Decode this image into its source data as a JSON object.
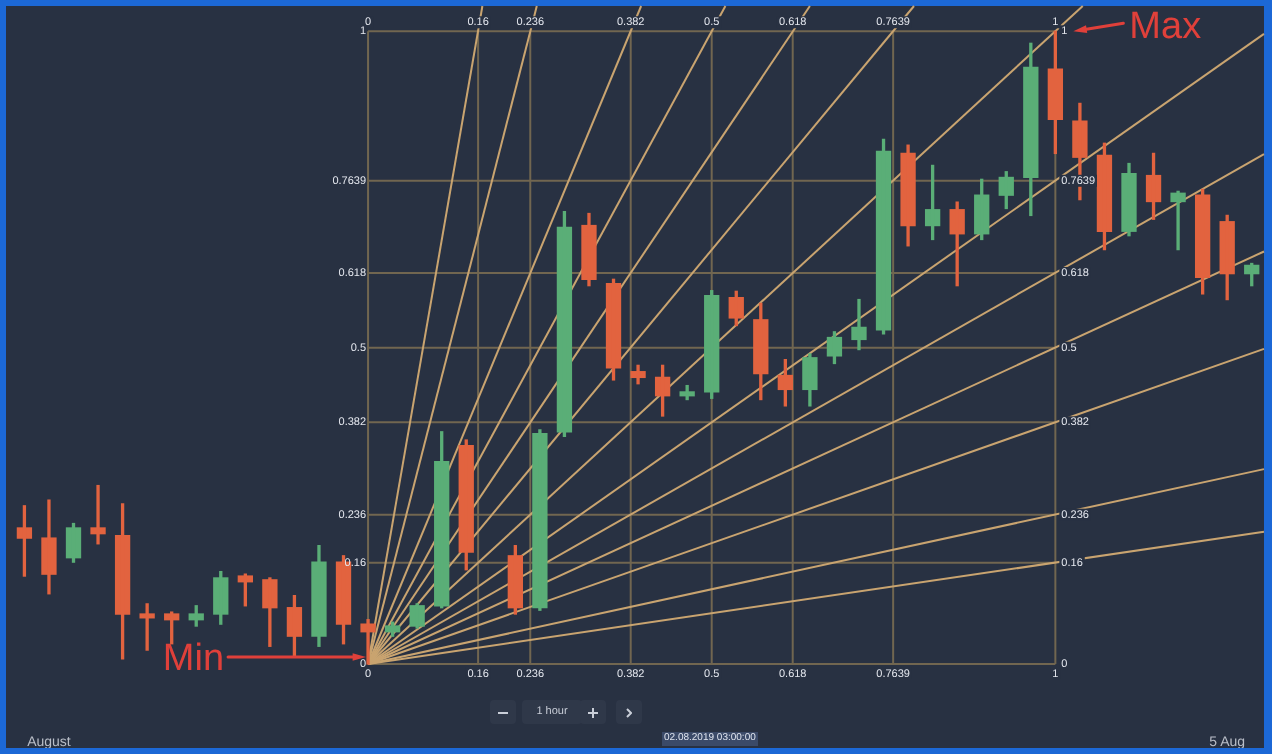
{
  "chart_data": {
    "type": "candlestick",
    "xlim": [
      "2019-07-31T20:30",
      "2019-08-05T03:00"
    ],
    "xticks": [
      {
        "value": "2019-08-01",
        "label": "August"
      },
      {
        "value": "2019-08-05",
        "label": "5 Aug"
      }
    ],
    "ylim": [
      0,
      1.04
    ],
    "yticks": [
      0,
      0.16,
      0.236,
      0.382,
      0.5,
      0.618,
      0.7639,
      1
    ],
    "annotations": [
      {
        "text": "Min",
        "x": "2019-08-02T02:00",
        "y": 0
      },
      {
        "text": "Max",
        "x": "2019-08-04T10:00",
        "y": 1
      },
      "1 hour",
      "02.08.2019 03:00:00"
    ],
    "series": [
      {
        "x": [
          "2019-07-31T22:00",
          "2019-08-01T00:00",
          "2019-08-01T02:00",
          "2019-08-01T04:00",
          "2019-08-01T06:00",
          "2019-08-01T08:00",
          "2019-08-01T10:00",
          "2019-08-01T12:00",
          "2019-08-01T14:00",
          "2019-08-01T16:00",
          "2019-08-01T18:00",
          "2019-08-01T20:00",
          "2019-08-01T22:00",
          "2019-08-02T00:00",
          "2019-08-02T02:00",
          "2019-08-02T04:00",
          "2019-08-02T06:00",
          "2019-08-02T08:00",
          "2019-08-02T10:00",
          "2019-08-02T14:00",
          "2019-08-02T16:00",
          "2019-08-02T18:00",
          "2019-08-02T20:00",
          "2019-08-02T22:00",
          "2019-08-03T00:00",
          "2019-08-03T02:00",
          "2019-08-03T04:00",
          "2019-08-03T06:00",
          "2019-08-03T08:00",
          "2019-08-03T10:00",
          "2019-08-03T12:00",
          "2019-08-03T14:00",
          "2019-08-03T16:00",
          "2019-08-03T18:00",
          "2019-08-03T20:00",
          "2019-08-03T22:00",
          "2019-08-04T00:00",
          "2019-08-04T02:00",
          "2019-08-04T04:00",
          "2019-08-04T06:00",
          "2019-08-04T08:00",
          "2019-08-04T10:00",
          "2019-08-04T12:00",
          "2019-08-04T14:00",
          "2019-08-04T16:00",
          "2019-08-04T18:00",
          "2019-08-04T20:00",
          "2019-08-04T22:00",
          "2019-08-05T00:00",
          "2019-08-05T02:00"
        ],
        "ohlc": [
          [
            0.215,
            0.25,
            0.139,
            0.199
          ],
          [
            0.199,
            0.259,
            0.111,
            0.142
          ],
          [
            0.168,
            0.222,
            0.161,
            0.215
          ],
          [
            0.215,
            0.282,
            0.19,
            0.206
          ],
          [
            0.203,
            0.253,
            0.008,
            0.079
          ],
          [
            0.079,
            0.095,
            0.022,
            0.073
          ],
          [
            0.079,
            0.082,
            0.032,
            0.07
          ],
          [
            0.07,
            0.092,
            0.06,
            0.079
          ],
          [
            0.079,
            0.146,
            0.063,
            0.136
          ],
          [
            0.139,
            0.142,
            0.092,
            0.13
          ],
          [
            0.133,
            0.136,
            0.028,
            0.089
          ],
          [
            0.089,
            0.108,
            0.013,
            0.044
          ],
          [
            0.044,
            0.187,
            0.028,
            0.161
          ],
          [
            0.161,
            0.171,
            0.032,
            0.063
          ],
          [
            0.063,
            0.07,
            0,
            0.051
          ],
          [
            0.051,
            0.066,
            0.044,
            0.06
          ],
          [
            0.06,
            0.095,
            0.057,
            0.092
          ],
          [
            0.092,
            0.367,
            0.089,
            0.32
          ],
          [
            0.345,
            0.354,
            0.149,
            0.177
          ],
          [
            0.171,
            0.187,
            0.079,
            0.089
          ],
          [
            0.089,
            0.37,
            0.085,
            0.364
          ],
          [
            0.367,
            0.715,
            0.36,
            0.69
          ],
          [
            0.693,
            0.712,
            0.598,
            0.608
          ],
          [
            0.601,
            0.608,
            0.449,
            0.468
          ],
          [
            0.462,
            0.472,
            0.443,
            0.453
          ],
          [
            0.453,
            0.472,
            0.392,
            0.424
          ],
          [
            0.424,
            0.44,
            0.418,
            0.43
          ],
          [
            0.43,
            0.59,
            0.42,
            0.582
          ],
          [
            0.579,
            0.589,
            0.535,
            0.547
          ],
          [
            0.544,
            0.57,
            0.418,
            0.459
          ],
          [
            0.456,
            0.481,
            0.408,
            0.434
          ],
          [
            0.434,
            0.49,
            0.408,
            0.484
          ],
          [
            0.487,
            0.525,
            0.475,
            0.516
          ],
          [
            0.513,
            0.576,
            0.497,
            0.532
          ],
          [
            0.528,
            0.829,
            0.522,
            0.81
          ],
          [
            0.807,
            0.82,
            0.661,
            0.693
          ],
          [
            0.693,
            0.788,
            0.671,
            0.718
          ],
          [
            0.718,
            0.73,
            0.598,
            0.68
          ],
          [
            0.68,
            0.766,
            0.671,
            0.741
          ],
          [
            0.741,
            0.778,
            0.72,
            0.769
          ],
          [
            0.769,
            0.981,
            0.709,
            0.943
          ],
          [
            0.94,
            1,
            0.807,
            0.861
          ],
          [
            0.858,
            0.886,
            0.734,
            0.801
          ],
          [
            0.804,
            0.823,
            0.655,
            0.684
          ],
          [
            0.684,
            0.791,
            0.677,
            0.775
          ],
          [
            0.772,
            0.807,
            0.703,
            0.731
          ],
          [
            0.731,
            0.747,
            0.655,
            0.744
          ],
          [
            0.741,
            0.75,
            0.585,
            0.611
          ],
          [
            0.699,
            0.709,
            0.576,
            0.617
          ],
          [
            0.617,
            0.633,
            0.598,
            0.63
          ]
        ],
        "colors": [
          "#e2633f",
          "#e2633f",
          "#5aae77",
          "#e2633f",
          "#e2633f",
          "#e2633f",
          "#e2633f",
          "#5aae77",
          "#5aae77",
          "#e2633f",
          "#e2633f",
          "#e2633f",
          "#5aae77",
          "#e2633f",
          "#e2633f",
          "#5aae77",
          "#5aae77",
          "#5aae77",
          "#e2633f",
          "#e2633f",
          "#5aae77",
          "#5aae77",
          "#e2633f",
          "#e2633f",
          "#e2633f",
          "#e2633f",
          "#5aae77",
          "#5aae77",
          "#e2633f",
          "#e2633f",
          "#e2633f",
          "#5aae77",
          "#5aae77",
          "#5aae77",
          "#5aae77",
          "#e2633f",
          "#5aae77",
          "#e2633f",
          "#5aae77",
          "#5aae77",
          "#5aae77",
          "#e2633f",
          "#e2633f",
          "#e2633f",
          "#5aae77",
          "#e2633f",
          "#5aae77",
          "#e2633f",
          "#e2633f",
          "#5aae77"
        ]
      },
      {
        "type": "line",
        "color": "#c9a470",
        "x": [
          "2019-08-02T02:00",
          "2019-08-02T11:19"
        ],
        "values": [
          0,
          1.04
        ]
      },
      {
        "type": "line",
        "color": "#c9a470",
        "x": [
          "2019-08-02T02:00",
          "2019-08-02T15:45"
        ],
        "values": [
          0,
          1.04
        ]
      },
      {
        "type": "line",
        "color": "#c9a470",
        "x": [
          "2019-08-02T02:00",
          "2019-08-03T00:15"
        ],
        "values": [
          0,
          1.04
        ]
      },
      {
        "type": "line",
        "color": "#c9a470",
        "x": [
          "2019-08-02T02:00",
          "2019-08-03T07:07"
        ],
        "values": [
          0,
          1.04
        ]
      },
      {
        "type": "line",
        "color": "#c9a470",
        "x": [
          "2019-08-02T02:00",
          "2019-08-03T14:00"
        ],
        "values": [
          0,
          1.04
        ]
      },
      {
        "type": "line",
        "color": "#c9a470",
        "x": [
          "2019-08-02T02:00",
          "2019-08-03T22:29"
        ],
        "values": [
          0,
          1.04
        ]
      },
      {
        "type": "line",
        "color": "#c9a470",
        "x": [
          "2019-08-02T02:00",
          "2019-08-04T12:14"
        ],
        "values": [
          0,
          1.04
        ]
      },
      {
        "type": "line",
        "color": "#c9a470",
        "x": [
          "2019-08-02T02:00",
          "2019-08-05T03:00"
        ],
        "values": [
          0,
          0.996
        ]
      },
      {
        "type": "line",
        "color": "#c9a470",
        "x": [
          "2019-08-02T02:00",
          "2019-08-05T03:00"
        ],
        "values": [
          0,
          0.806
        ]
      },
      {
        "type": "line",
        "color": "#c9a470",
        "x": [
          "2019-08-02T02:00",
          "2019-08-05T03:00"
        ],
        "values": [
          0,
          0.652
        ]
      },
      {
        "type": "line",
        "color": "#c9a470",
        "x": [
          "2019-08-02T02:00",
          "2019-08-05T03:00"
        ],
        "values": [
          0,
          0.498
        ]
      },
      {
        "type": "line",
        "color": "#c9a470",
        "x": [
          "2019-08-02T02:00",
          "2019-08-05T03:00"
        ],
        "values": [
          0,
          0.308
        ]
      },
      {
        "type": "line",
        "color": "#c9a470",
        "x": [
          "2019-08-02T02:00",
          "2019-08-05T03:00"
        ],
        "values": [
          0,
          0.209
        ]
      },
      {
        "type": "line",
        "name": "0",
        "color": "#716650",
        "x": [
          "2019-08-02T02:00",
          "2019-08-04T10:00"
        ],
        "values": [
          0,
          0
        ]
      },
      {
        "type": "line",
        "name": "0.16",
        "color": "#716650",
        "x": [
          "2019-08-02T02:00",
          "2019-08-04T10:00"
        ],
        "values": [
          0.16,
          0.16
        ]
      },
      {
        "type": "line",
        "name": "0.236",
        "color": "#716650",
        "x": [
          "2019-08-02T02:00",
          "2019-08-04T10:00"
        ],
        "values": [
          0.236,
          0.236
        ]
      },
      {
        "type": "line",
        "name": "0.382",
        "color": "#716650",
        "x": [
          "2019-08-02T02:00",
          "2019-08-04T10:00"
        ],
        "values": [
          0.382,
          0.382
        ]
      },
      {
        "type": "line",
        "name": "0.5",
        "color": "#716650",
        "x": [
          "2019-08-02T02:00",
          "2019-08-04T10:00"
        ],
        "values": [
          0.5,
          0.5
        ]
      },
      {
        "type": "line",
        "name": "0.618",
        "color": "#716650",
        "x": [
          "2019-08-02T02:00",
          "2019-08-04T10:00"
        ],
        "values": [
          0.618,
          0.618
        ]
      },
      {
        "type": "line",
        "name": "0.7639",
        "color": "#716650",
        "x": [
          "2019-08-02T02:00",
          "2019-08-04T10:00"
        ],
        "values": [
          0.7639,
          0.7639
        ]
      },
      {
        "type": "line",
        "name": "1",
        "color": "#716650",
        "x": [
          "2019-08-02T02:00",
          "2019-08-04T10:00"
        ],
        "values": [
          1,
          1
        ]
      },
      {
        "type": "line",
        "name": "0",
        "color": "#716650",
        "x": [
          "2019-08-02T02:00",
          "2019-08-02T02:00"
        ],
        "values": [
          0,
          1
        ]
      },
      {
        "type": "line",
        "name": "0.16",
        "color": "#716650",
        "x": [
          "2019-08-02T10:58",
          "2019-08-02T10:58"
        ],
        "values": [
          0,
          1
        ]
      },
      {
        "type": "line",
        "name": "0.236",
        "color": "#716650",
        "x": [
          "2019-08-02T15:13",
          "2019-08-02T15:13"
        ],
        "values": [
          0,
          1
        ]
      },
      {
        "type": "line",
        "name": "0.382",
        "color": "#716650",
        "x": [
          "2019-08-02T23:24",
          "2019-08-02T23:24"
        ],
        "values": [
          0,
          1
        ]
      },
      {
        "type": "line",
        "name": "0.5",
        "color": "#716650",
        "x": [
          "2019-08-03T06:00",
          "2019-08-03T06:00"
        ],
        "values": [
          0,
          1
        ]
      },
      {
        "type": "line",
        "name": "0.618",
        "color": "#716650",
        "x": [
          "2019-08-03T12:36",
          "2019-08-03T12:36"
        ],
        "values": [
          0,
          1
        ]
      },
      {
        "type": "line",
        "name": "0.7639",
        "color": "#716650",
        "x": [
          "2019-08-03T20:47",
          "2019-08-03T20:47"
        ],
        "values": [
          0,
          1
        ]
      },
      {
        "type": "line",
        "name": "1",
        "color": "#716650",
        "x": [
          "2019-08-04T10:00",
          "2019-08-04T10:00"
        ],
        "values": [
          0,
          1
        ]
      }
    ]
  }
}
